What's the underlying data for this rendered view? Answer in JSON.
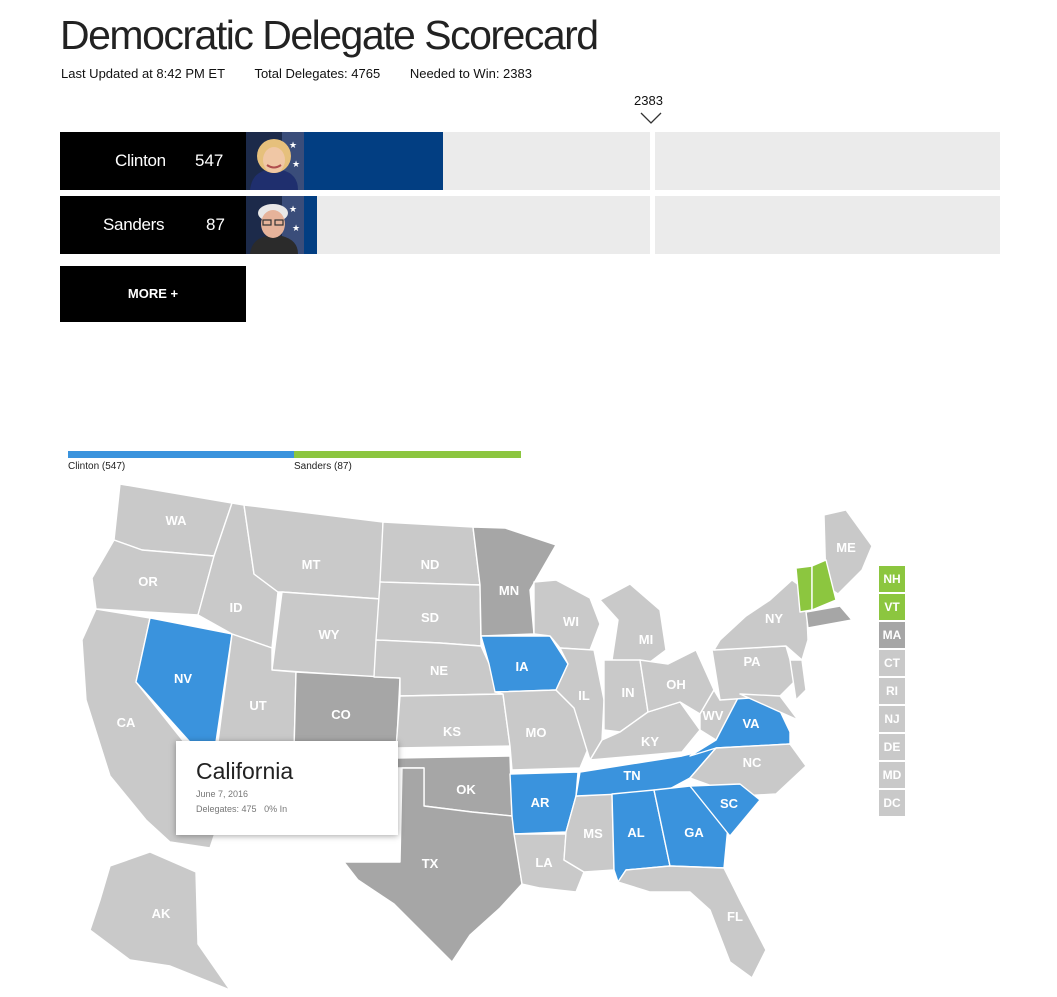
{
  "header": {
    "title": "Democratic Delegate Scorecard",
    "last_updated": "Last Updated at 8:42 PM ET",
    "total_delegates": "Total Delegates: 4765",
    "needed_to_win": "Needed to Win: 2383",
    "win_marker": "2383"
  },
  "candidates": [
    {
      "name": "Clinton",
      "delegates": "547",
      "delegates_value": 547
    },
    {
      "name": "Sanders",
      "delegates": "87",
      "delegates_value": 87
    }
  ],
  "more_button": "MORE +",
  "legend": {
    "clinton": "Clinton (547)",
    "sanders": "Sanders (87)"
  },
  "colors": {
    "clinton": "#3a93dd",
    "sanders": "#8cc63f",
    "bar_fill": "#023e82",
    "pending": "#c9c9c9",
    "ties": "#a6a6a6"
  },
  "states": [
    {
      "abbr": "WA",
      "status": "pending"
    },
    {
      "abbr": "OR",
      "status": "pending"
    },
    {
      "abbr": "CA",
      "status": "pending"
    },
    {
      "abbr": "NV",
      "status": "clinton"
    },
    {
      "abbr": "ID",
      "status": "pending"
    },
    {
      "abbr": "MT",
      "status": "pending"
    },
    {
      "abbr": "WY",
      "status": "pending"
    },
    {
      "abbr": "UT",
      "status": "pending"
    },
    {
      "abbr": "CO",
      "status": "ties"
    },
    {
      "abbr": "ND",
      "status": "pending"
    },
    {
      "abbr": "SD",
      "status": "pending"
    },
    {
      "abbr": "NE",
      "status": "pending"
    },
    {
      "abbr": "KS",
      "status": "pending"
    },
    {
      "abbr": "OK",
      "status": "ties"
    },
    {
      "abbr": "TX",
      "status": "ties"
    },
    {
      "abbr": "MN",
      "status": "ties"
    },
    {
      "abbr": "IA",
      "status": "clinton"
    },
    {
      "abbr": "MO",
      "status": "pending"
    },
    {
      "abbr": "AR",
      "status": "clinton"
    },
    {
      "abbr": "LA",
      "status": "pending"
    },
    {
      "abbr": "WI",
      "status": "pending"
    },
    {
      "abbr": "IL",
      "status": "pending"
    },
    {
      "abbr": "MS",
      "status": "pending"
    },
    {
      "abbr": "MI",
      "status": "pending"
    },
    {
      "abbr": "IN",
      "status": "pending"
    },
    {
      "abbr": "KY",
      "status": "pending"
    },
    {
      "abbr": "TN",
      "status": "clinton"
    },
    {
      "abbr": "AL",
      "status": "clinton"
    },
    {
      "abbr": "GA",
      "status": "clinton"
    },
    {
      "abbr": "FL",
      "status": "pending"
    },
    {
      "abbr": "OH",
      "status": "pending"
    },
    {
      "abbr": "WV",
      "status": "pending"
    },
    {
      "abbr": "VA",
      "status": "clinton"
    },
    {
      "abbr": "NC",
      "status": "pending"
    },
    {
      "abbr": "SC",
      "status": "clinton"
    },
    {
      "abbr": "PA",
      "status": "pending"
    },
    {
      "abbr": "NY",
      "status": "pending"
    },
    {
      "abbr": "ME",
      "status": "pending"
    },
    {
      "abbr": "AK",
      "status": "pending"
    }
  ],
  "small_states": [
    {
      "abbr": "NH",
      "status": "sanders"
    },
    {
      "abbr": "VT",
      "status": "sanders"
    },
    {
      "abbr": "MA",
      "status": "ties"
    },
    {
      "abbr": "CT",
      "status": "pending"
    },
    {
      "abbr": "RI",
      "status": "pending"
    },
    {
      "abbr": "NJ",
      "status": "pending"
    },
    {
      "abbr": "DE",
      "status": "pending"
    },
    {
      "abbr": "MD",
      "status": "pending"
    },
    {
      "abbr": "DC",
      "status": "pending"
    }
  ],
  "tooltip": {
    "state": "California",
    "date": "June 7, 2016",
    "delegates": "Delegates: 475",
    "reporting": "0% In"
  }
}
